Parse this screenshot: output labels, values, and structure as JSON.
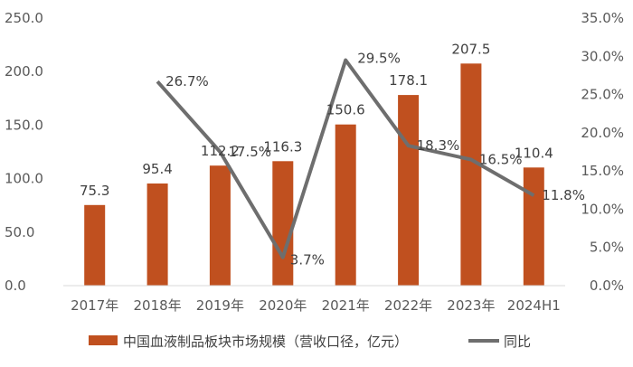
{
  "chart_data": {
    "type": "bar",
    "categories": [
      "2017年",
      "2018年",
      "2019年",
      "2020年",
      "2021年",
      "2022年",
      "2023年",
      "2024H1"
    ],
    "series": [
      {
        "name": "中国血液制品板块市场规模（营收口径，亿元）",
        "type": "bar",
        "axis": "left",
        "values": [
          75.3,
          95.4,
          112.2,
          116.3,
          150.6,
          178.1,
          207.5,
          110.4
        ],
        "labels": [
          "75.3",
          "95.4",
          "112.2",
          "116.3",
          "150.6",
          "178.1",
          "207.5",
          "110.4"
        ]
      },
      {
        "name": "同比",
        "type": "line",
        "axis": "right",
        "values": [
          null,
          26.7,
          17.5,
          3.7,
          29.5,
          18.3,
          16.5,
          11.8
        ],
        "labels": [
          "",
          "26.7%",
          "17.5%",
          "3.7%",
          "29.5%",
          "18.3%",
          "16.5%",
          "11.8%"
        ]
      }
    ],
    "left_axis": {
      "ylim": [
        0,
        250
      ],
      "ticks": [
        "0.0",
        "50.0",
        "100.0",
        "150.0",
        "200.0",
        "250.0"
      ]
    },
    "right_axis": {
      "ylim": [
        0,
        35
      ],
      "ticks": [
        "0.0%",
        "5.0%",
        "10.0%",
        "15.0%",
        "20.0%",
        "25.0%",
        "30.0%",
        "35.0%"
      ]
    },
    "legend_position": "bottom",
    "colors": {
      "bar": "#C0501F",
      "line": "#6E6E6E",
      "axis": "#D9D9D9",
      "text": "#595959"
    }
  }
}
